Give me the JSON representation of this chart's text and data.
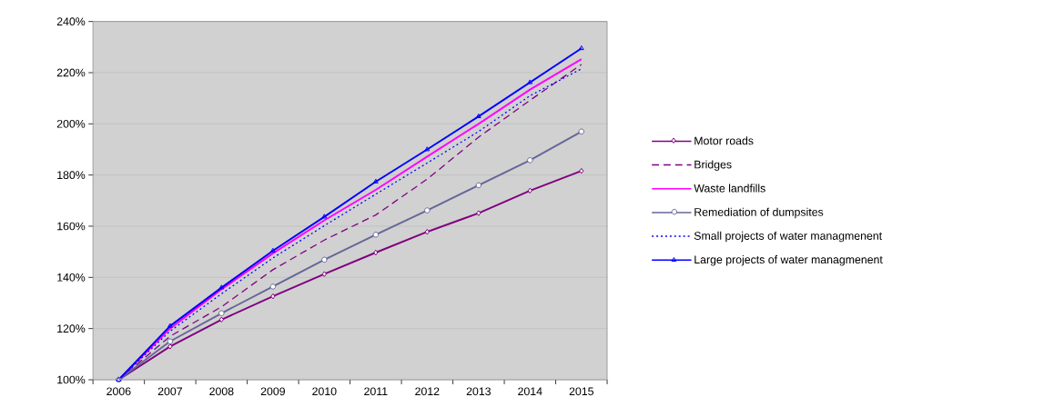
{
  "chart_data": {
    "type": "line",
    "categories": [
      "2006",
      "2007",
      "2008",
      "2009",
      "2010",
      "2011",
      "2012",
      "2013",
      "2014",
      "2015"
    ],
    "series": [
      {
        "name": "Motor roads",
        "color": "#800080",
        "marker": "diamond",
        "line_style": "solid",
        "values": [
          100,
          113,
          123.5,
          132.6,
          141.3,
          149.7,
          157.8,
          165.1,
          173.9,
          181.6
        ]
      },
      {
        "name": "Bridges",
        "color": "#800080",
        "marker": "none",
        "line_style": "dashed",
        "values": [
          100,
          117,
          128.5,
          143,
          154.6,
          164.4,
          178.4,
          194.8,
          209.2,
          223.2
        ]
      },
      {
        "name": "Waste landfills",
        "color": "#ff00ff",
        "marker": "none",
        "line_style": "solid",
        "values": [
          100,
          120,
          135.3,
          149.4,
          162.3,
          174.2,
          187.2,
          200,
          213.4,
          225.3
        ]
      },
      {
        "name": "Remediation of dumpsites",
        "color": "#666699",
        "marker": "circle",
        "line_style": "solid",
        "values": [
          100,
          115,
          126,
          136.4,
          146.9,
          156.7,
          166.2,
          176,
          185.8,
          197
        ]
      },
      {
        "name": "Small projects of water managmenent",
        "color": "#0000ff",
        "marker": "none",
        "line_style": "dotted",
        "values": [
          100,
          119,
          133.6,
          147.6,
          160.2,
          172.5,
          184.7,
          197,
          211,
          221.5
        ]
      },
      {
        "name": "Large projects of water managmenent",
        "color": "#0000ff",
        "marker": "triangle",
        "line_style": "solid",
        "values": [
          100,
          121,
          136,
          150.4,
          163.7,
          177.4,
          190,
          202.9,
          216.2,
          229.5
        ]
      }
    ],
    "ylim": [
      100,
      240
    ],
    "yticks": [
      {
        "value": 100,
        "label": "100%"
      },
      {
        "value": 120,
        "label": "120%"
      },
      {
        "value": 140,
        "label": "140%"
      },
      {
        "value": 160,
        "label": "160%"
      },
      {
        "value": 180,
        "label": "180%"
      },
      {
        "value": 200,
        "label": "200%"
      },
      {
        "value": 220,
        "label": "220%"
      },
      {
        "value": 240,
        "label": "240%"
      }
    ],
    "grid": "y",
    "legend": "right"
  }
}
